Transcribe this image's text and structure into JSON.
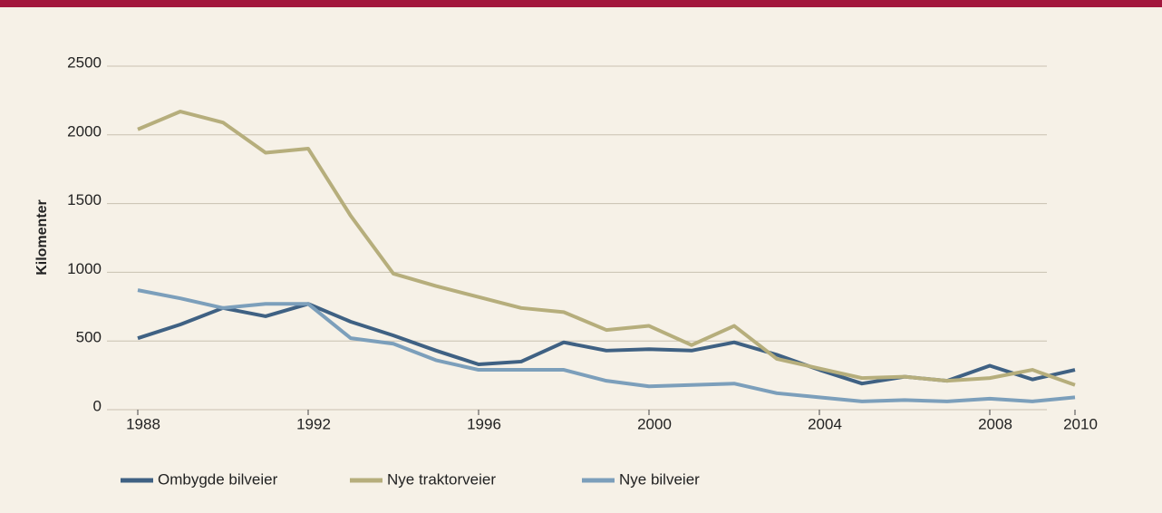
{
  "chart_data": {
    "type": "line",
    "y_label": "Kilomenter",
    "x": [
      1988,
      1989,
      1990,
      1991,
      1992,
      1993,
      1994,
      1995,
      1996,
      1997,
      1998,
      1999,
      2000,
      2001,
      2002,
      2003,
      2004,
      2005,
      2006,
      2007,
      2008,
      2009,
      2010
    ],
    "xlim": [
      1988,
      2010
    ],
    "xticks": [
      1988,
      1992,
      1996,
      2000,
      2004,
      2008,
      2010
    ],
    "ylim": [
      0,
      2500
    ],
    "yticks": [
      0,
      500,
      1000,
      1500,
      2000,
      2500
    ],
    "grid": true,
    "legend": "bottom",
    "series": [
      {
        "name": "Ombygde bilveier",
        "color": "#3f6183",
        "values": [
          520,
          620,
          740,
          680,
          770,
          640,
          540,
          430,
          330,
          350,
          490,
          430,
          440,
          430,
          490,
          400,
          290,
          190,
          240,
          210,
          320,
          220,
          290
        ]
      },
      {
        "name": "Nye traktorveier",
        "color": "#b6ae7c",
        "values": [
          2040,
          2170,
          2090,
          1870,
          1900,
          1410,
          990,
          900,
          820,
          740,
          710,
          580,
          610,
          470,
          610,
          370,
          300,
          230,
          240,
          210,
          230,
          290,
          180
        ]
      },
      {
        "name": "Nye bilveier",
        "color": "#7c9fbb",
        "values": [
          870,
          810,
          740,
          770,
          770,
          520,
          480,
          360,
          290,
          290,
          290,
          210,
          170,
          180,
          190,
          120,
          90,
          60,
          70,
          60,
          80,
          60,
          90
        ]
      }
    ]
  }
}
